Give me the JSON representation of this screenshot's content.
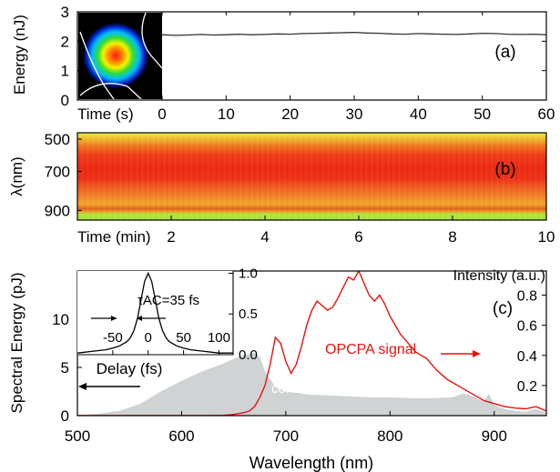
{
  "colors": {
    "axis": "#000000",
    "trace": "#333333",
    "opcpa": "#e8120c",
    "continuum": "#cfd3d4",
    "legend_arrow_signal": "#e8120c",
    "legend_arrow_continuum": "#000000"
  },
  "chart_data": [
    {
      "id": "a",
      "type": "line",
      "panel_label": "(a)",
      "xlabel": "Time (s)",
      "ylabel": "Energy (nJ)",
      "xlim": [
        0,
        60
      ],
      "ylim": [
        0,
        3
      ],
      "xticks": [
        0,
        10,
        20,
        30,
        40,
        50,
        60
      ],
      "yticks": [
        0,
        1,
        2,
        3
      ],
      "x": [
        0,
        2,
        4,
        6,
        8,
        10,
        12,
        14,
        16,
        18,
        20,
        22,
        24,
        26,
        28,
        30,
        32,
        34,
        36,
        38,
        40,
        42,
        44,
        46,
        48,
        50,
        52,
        54,
        56,
        58,
        60
      ],
      "y": [
        2.22,
        2.2,
        2.21,
        2.23,
        2.21,
        2.22,
        2.24,
        2.22,
        2.23,
        2.25,
        2.24,
        2.26,
        2.27,
        2.28,
        2.29,
        2.3,
        2.28,
        2.27,
        2.25,
        2.24,
        2.26,
        2.25,
        2.24,
        2.23,
        2.25,
        2.27,
        2.26,
        2.24,
        2.23,
        2.24,
        2.22
      ],
      "inset": "beam profile image"
    },
    {
      "id": "b",
      "type": "heatmap",
      "panel_label": "(b)",
      "xlabel": "Time (min)",
      "ylabel": "λ(nm)",
      "xlim": [
        0,
        10
      ],
      "ylim": [
        500,
        950
      ],
      "xticks": [
        2,
        4,
        6,
        8,
        10
      ],
      "yticks": [
        500,
        700,
        900
      ],
      "wavelength": [
        500,
        540,
        580,
        620,
        660,
        700,
        740,
        780,
        820,
        860,
        890,
        910,
        930,
        950
      ],
      "relative_intensity": [
        0.45,
        0.65,
        0.8,
        0.9,
        0.95,
        0.97,
        0.95,
        0.85,
        0.7,
        0.6,
        0.7,
        0.85,
        0.35,
        0.3
      ]
    },
    {
      "id": "c",
      "type": "line",
      "panel_label": "(c)",
      "xlabel": "Wavelength (nm)",
      "ylabel": "Spectral Energy (pJ)",
      "y2label": "Intensity (a.u.)",
      "xlim": [
        500,
        950
      ],
      "ylim": [
        0,
        15
      ],
      "y2lim": [
        0,
        0.96
      ],
      "xticks": [
        500,
        600,
        700,
        800,
        900
      ],
      "yticks": [
        0,
        5,
        10
      ],
      "y2ticks": [
        0.2,
        0.4,
        0.6,
        0.8
      ],
      "series": [
        {
          "name": "OPCPA signal",
          "axis": "right",
          "x": [
            500,
            520,
            540,
            560,
            580,
            600,
            620,
            640,
            650,
            660,
            665,
            670,
            675,
            680,
            685,
            690,
            695,
            700,
            705,
            710,
            715,
            720,
            725,
            730,
            735,
            740,
            745,
            750,
            755,
            760,
            765,
            770,
            775,
            780,
            785,
            790,
            795,
            800,
            805,
            810,
            815,
            820,
            825,
            830,
            835,
            840,
            845,
            850,
            855,
            860,
            870,
            880,
            890,
            900,
            910,
            920,
            930,
            940,
            950
          ],
          "y": [
            0,
            0,
            0,
            0,
            0,
            0,
            0,
            0.002,
            0.008,
            0.02,
            0.03,
            0.06,
            0.12,
            0.2,
            0.34,
            0.52,
            0.48,
            0.36,
            0.28,
            0.34,
            0.46,
            0.6,
            0.7,
            0.76,
            0.73,
            0.7,
            0.72,
            0.78,
            0.85,
            0.92,
            0.9,
            0.96,
            0.88,
            0.8,
            0.76,
            0.8,
            0.74,
            0.66,
            0.6,
            0.54,
            0.5,
            0.46,
            0.42,
            0.4,
            0.38,
            0.34,
            0.3,
            0.27,
            0.24,
            0.22,
            0.18,
            0.14,
            0.1,
            0.08,
            0.06,
            0.05,
            0.045,
            0.06,
            0.03
          ]
        },
        {
          "name": "continuum",
          "axis": "left",
          "type": "area",
          "x": [
            500,
            520,
            540,
            560,
            580,
            600,
            620,
            640,
            650,
            660,
            670,
            675,
            680,
            690,
            700,
            710,
            720,
            740,
            760,
            780,
            800,
            820,
            840,
            860,
            870,
            880,
            885,
            890,
            895,
            900,
            910,
            920,
            930,
            940,
            950
          ],
          "y": [
            0.05,
            0.2,
            0.5,
            1.2,
            2.5,
            3.6,
            4.6,
            5.4,
            5.9,
            6.3,
            6.5,
            6.1,
            4.6,
            3.0,
            2.5,
            2.4,
            2.2,
            2.1,
            2.0,
            1.9,
            1.9,
            1.8,
            1.8,
            1.9,
            2.3,
            2.0,
            1.7,
            1.5,
            2.3,
            1.1,
            0.7,
            0.5,
            0.4,
            0.7,
            0.3
          ]
        }
      ],
      "annotations": {
        "signal_label": "OPCPA signal",
        "continuum_label": "continuum"
      },
      "inset": {
        "type": "line",
        "xlabel": "Delay (fs)",
        "annotation": "τAC=35 fs",
        "xlim": [
          -100,
          120
        ],
        "ylim": [
          0,
          1.05
        ],
        "xticks": [
          -50,
          0,
          50,
          100
        ],
        "yticks": [
          0.0,
          0.5,
          1.0
        ],
        "x": [
          -100,
          -90,
          -80,
          -70,
          -60,
          -50,
          -40,
          -30,
          -25,
          -20,
          -15,
          -10,
          -5,
          0,
          5,
          10,
          15,
          20,
          25,
          30,
          40,
          50,
          60,
          70,
          80,
          90,
          100,
          110,
          120
        ],
        "y": [
          0.02,
          0.03,
          0.04,
          0.05,
          0.06,
          0.08,
          0.11,
          0.16,
          0.21,
          0.3,
          0.45,
          0.68,
          0.9,
          1.0,
          0.9,
          0.68,
          0.45,
          0.3,
          0.21,
          0.16,
          0.11,
          0.08,
          0.06,
          0.05,
          0.04,
          0.03,
          0.02,
          0.02,
          0.02
        ]
      }
    }
  ]
}
